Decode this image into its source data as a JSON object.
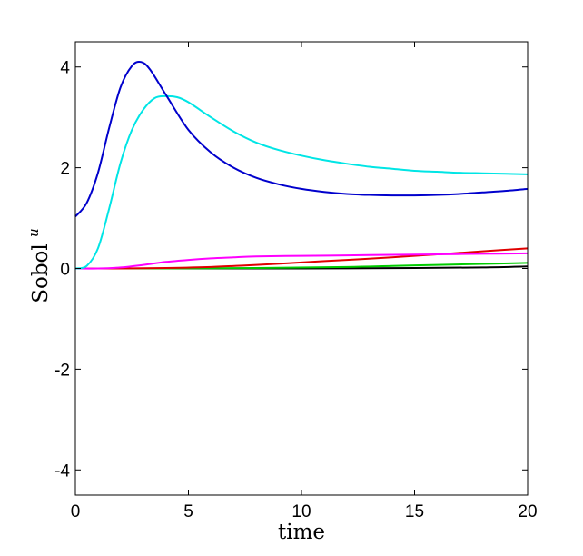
{
  "chart_data": {
    "type": "line",
    "title": "",
    "xlabel": "time",
    "ylabel": "Sobol",
    "ylabel_superscript": "u",
    "xlim": [
      0,
      20
    ],
    "ylim": [
      -4.5,
      4.5
    ],
    "xticks": [
      0,
      5,
      10,
      15,
      20
    ],
    "yticks": [
      -4,
      -2,
      0,
      2,
      4
    ],
    "xtick_labels": [
      "0",
      "5",
      "10",
      "15",
      "20"
    ],
    "ytick_labels": [
      "-4",
      "-2",
      "0",
      "2",
      "4"
    ],
    "grid": false,
    "legend": "none",
    "series": [
      {
        "color": "#0000cc",
        "points": [
          [
            0,
            1.03
          ],
          [
            0.5,
            1.3
          ],
          [
            1,
            1.9
          ],
          [
            1.5,
            2.8
          ],
          [
            2,
            3.6
          ],
          [
            2.5,
            4.02
          ],
          [
            2.9,
            4.1
          ],
          [
            3.3,
            3.95
          ],
          [
            4,
            3.45
          ],
          [
            5,
            2.75
          ],
          [
            6,
            2.3
          ],
          [
            7,
            2.0
          ],
          [
            8,
            1.8
          ],
          [
            9,
            1.67
          ],
          [
            10,
            1.58
          ],
          [
            11,
            1.52
          ],
          [
            12,
            1.48
          ],
          [
            13,
            1.46
          ],
          [
            14,
            1.45
          ],
          [
            15,
            1.45
          ],
          [
            16,
            1.46
          ],
          [
            17,
            1.48
          ],
          [
            18,
            1.51
          ],
          [
            19,
            1.54
          ],
          [
            20,
            1.58
          ]
        ]
      },
      {
        "color": "#00e5e5",
        "points": [
          [
            0,
            0.0
          ],
          [
            0.5,
            0.05
          ],
          [
            1,
            0.4
          ],
          [
            1.5,
            1.2
          ],
          [
            2,
            2.1
          ],
          [
            2.5,
            2.75
          ],
          [
            3,
            3.15
          ],
          [
            3.5,
            3.38
          ],
          [
            4,
            3.42
          ],
          [
            4.5,
            3.4
          ],
          [
            5,
            3.3
          ],
          [
            6,
            3.0
          ],
          [
            7,
            2.72
          ],
          [
            8,
            2.5
          ],
          [
            9,
            2.35
          ],
          [
            10,
            2.24
          ],
          [
            11,
            2.15
          ],
          [
            12,
            2.08
          ],
          [
            13,
            2.02
          ],
          [
            14,
            1.98
          ],
          [
            15,
            1.94
          ],
          [
            16,
            1.92
          ],
          [
            17,
            1.9
          ],
          [
            18,
            1.89
          ],
          [
            19,
            1.88
          ],
          [
            20,
            1.87
          ]
        ]
      },
      {
        "color": "#ff00ff",
        "points": [
          [
            0,
            0.0
          ],
          [
            1,
            0.0
          ],
          [
            2,
            0.02
          ],
          [
            3,
            0.07
          ],
          [
            4,
            0.13
          ],
          [
            5,
            0.17
          ],
          [
            6,
            0.2
          ],
          [
            7,
            0.22
          ],
          [
            8,
            0.24
          ],
          [
            10,
            0.25
          ],
          [
            12,
            0.26
          ],
          [
            14,
            0.27
          ],
          [
            16,
            0.28
          ],
          [
            18,
            0.29
          ],
          [
            20,
            0.3
          ]
        ]
      },
      {
        "color": "#e00000",
        "points": [
          [
            0,
            0.0
          ],
          [
            2,
            0.0
          ],
          [
            4,
            0.01
          ],
          [
            6,
            0.03
          ],
          [
            8,
            0.07
          ],
          [
            10,
            0.12
          ],
          [
            12,
            0.17
          ],
          [
            14,
            0.22
          ],
          [
            16,
            0.28
          ],
          [
            18,
            0.34
          ],
          [
            20,
            0.4
          ]
        ]
      },
      {
        "color": "#00cc00",
        "points": [
          [
            0,
            0.0
          ],
          [
            4,
            0.0
          ],
          [
            8,
            0.01
          ],
          [
            12,
            0.03
          ],
          [
            14,
            0.05
          ],
          [
            16,
            0.07
          ],
          [
            18,
            0.09
          ],
          [
            20,
            0.11
          ]
        ]
      },
      {
        "color": "#000000",
        "points": [
          [
            0,
            0.0
          ],
          [
            5,
            0.0
          ],
          [
            10,
            0.0
          ],
          [
            15,
            0.01
          ],
          [
            18,
            0.02
          ],
          [
            20,
            0.04
          ]
        ]
      }
    ]
  }
}
